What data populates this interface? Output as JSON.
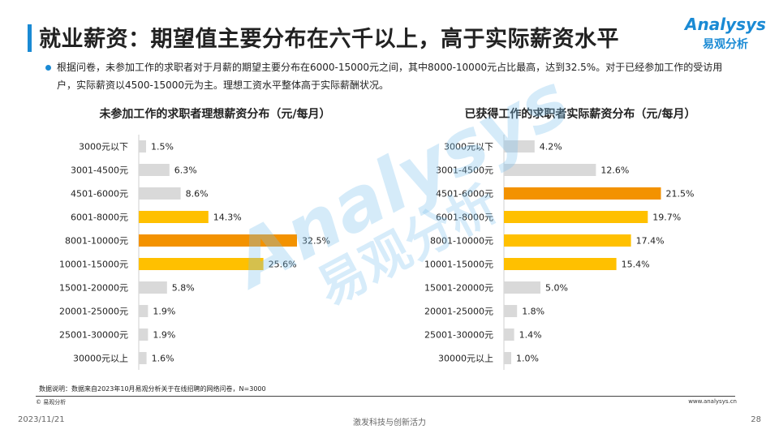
{
  "page": {
    "title": "就业薪资：期望值主要分布在六千以上，高于实际薪资水平",
    "logo_en": "Analysys",
    "logo_cn": "易观分析",
    "description": "根据问卷，未参加工作的求职者对于月薪的期望主要分布在6000-15000元之间，其中8000-10000元占比最高，达到32.5%。对于已经参加工作的受访用户，实际薪资以4500-15000元为主。理想工资水平整体高于实际薪酬状况。",
    "watermark_en": "Analysys",
    "watermark_cn": "易观分析",
    "note": "数据说明：数据来自2023年10月易观分析关于在线招聘的网络问卷，N=3000",
    "copyright": "© 易观分析",
    "website": "www.analysys.cn",
    "date": "2023/11/21",
    "slogan": "激发科技与创新活力",
    "page_number": "28"
  },
  "colors": {
    "accent": "#1a8ad4",
    "gray": "#d9d9d9",
    "yellow": "#ffc000",
    "orange": "#f39200"
  },
  "chart_data": [
    {
      "type": "bar",
      "orientation": "horizontal",
      "title": "未参加工作的求职者理想薪资分布（元/每月）",
      "categories": [
        "3000元以下",
        "3001-4500元",
        "4501-6000元",
        "6001-8000元",
        "8001-10000元",
        "10001-15000元",
        "15001-20000元",
        "20001-25000元",
        "25001-30000元",
        "30000元以上"
      ],
      "values": [
        1.5,
        6.3,
        8.6,
        14.3,
        32.5,
        25.6,
        5.8,
        1.9,
        1.9,
        1.6
      ],
      "labels": [
        "1.5%",
        "6.3%",
        "8.6%",
        "14.3%",
        "32.5%",
        "25.6%",
        "5.8%",
        "1.9%",
        "1.9%",
        "1.6%"
      ],
      "colors": [
        "gray",
        "gray",
        "gray",
        "yellow",
        "orange",
        "yellow",
        "gray",
        "gray",
        "gray",
        "gray"
      ],
      "unit": "%",
      "xlim": [
        0,
        35
      ]
    },
    {
      "type": "bar",
      "orientation": "horizontal",
      "title": "已获得工作的求职者实际薪资分布（元/每月）",
      "categories": [
        "3000元以下",
        "3001-4500元",
        "4501-6000元",
        "6001-8000元",
        "8001-10000元",
        "10001-15000元",
        "15001-20000元",
        "20001-25000元",
        "25001-30000元",
        "30000元以上"
      ],
      "values": [
        4.2,
        12.6,
        21.5,
        19.7,
        17.4,
        15.4,
        5.0,
        1.8,
        1.4,
        1.0
      ],
      "labels": [
        "4.2%",
        "12.6%",
        "21.5%",
        "19.7%",
        "17.4%",
        "15.4%",
        "5.0%",
        "1.8%",
        "1.4%",
        "1.0%"
      ],
      "colors": [
        "gray",
        "gray",
        "orange",
        "yellow",
        "yellow",
        "yellow",
        "gray",
        "gray",
        "gray",
        "gray"
      ],
      "unit": "%",
      "xlim": [
        0,
        25
      ]
    }
  ]
}
